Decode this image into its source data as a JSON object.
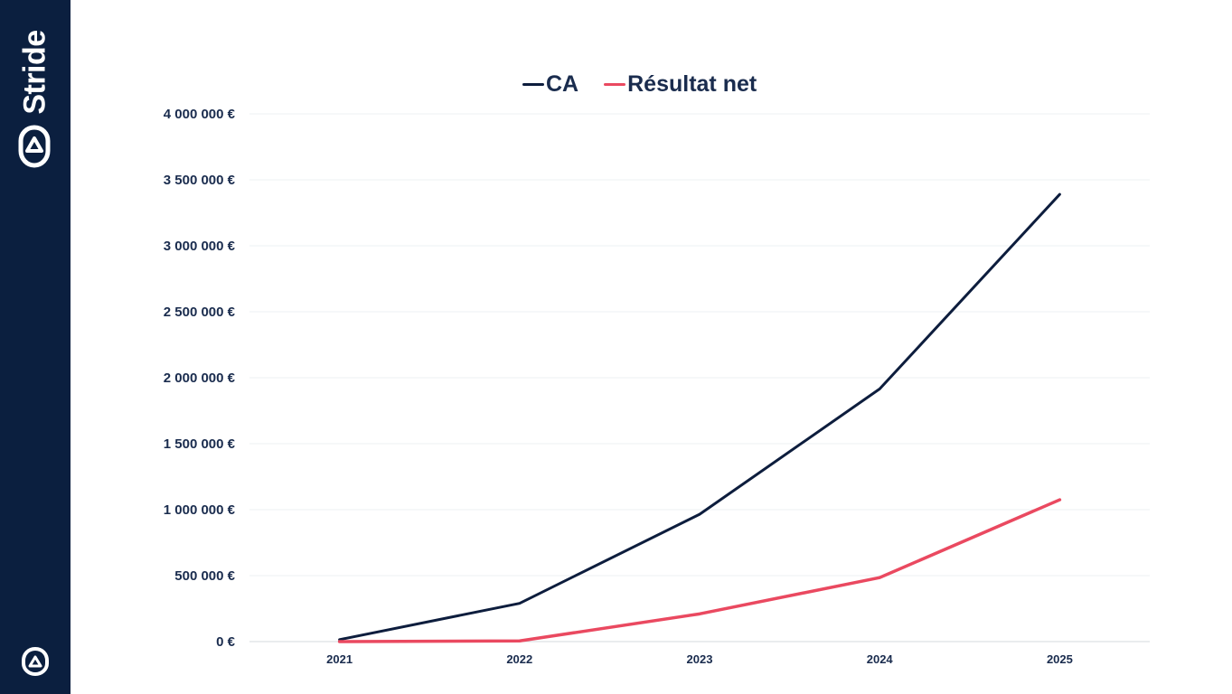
{
  "brand": {
    "name": "Stride",
    "logo": "stride-logo-icon",
    "color": "#0b1f3f"
  },
  "chart_data": {
    "type": "line",
    "x": [
      "2021",
      "2022",
      "2023",
      "2024",
      "2025"
    ],
    "series": [
      {
        "name": "CA",
        "color": "#0d1d3d",
        "values": [
          15000,
          290000,
          965000,
          1915000,
          3390000
        ]
      },
      {
        "name": "Résultat net",
        "color": "#ea4960",
        "values": [
          0,
          5000,
          210000,
          485000,
          1075000
        ]
      }
    ],
    "yticks": [
      "0 €",
      "500 000 €",
      "1 000 000 €",
      "1 500 000 €",
      "2 000 000 €",
      "2 500 000 €",
      "3 000 000 €",
      "3 500 000 €",
      "4 000 000 €"
    ],
    "ylim": [
      0,
      4000000
    ],
    "ystep": 500000,
    "grid": true,
    "legend_position": "top-center"
  }
}
